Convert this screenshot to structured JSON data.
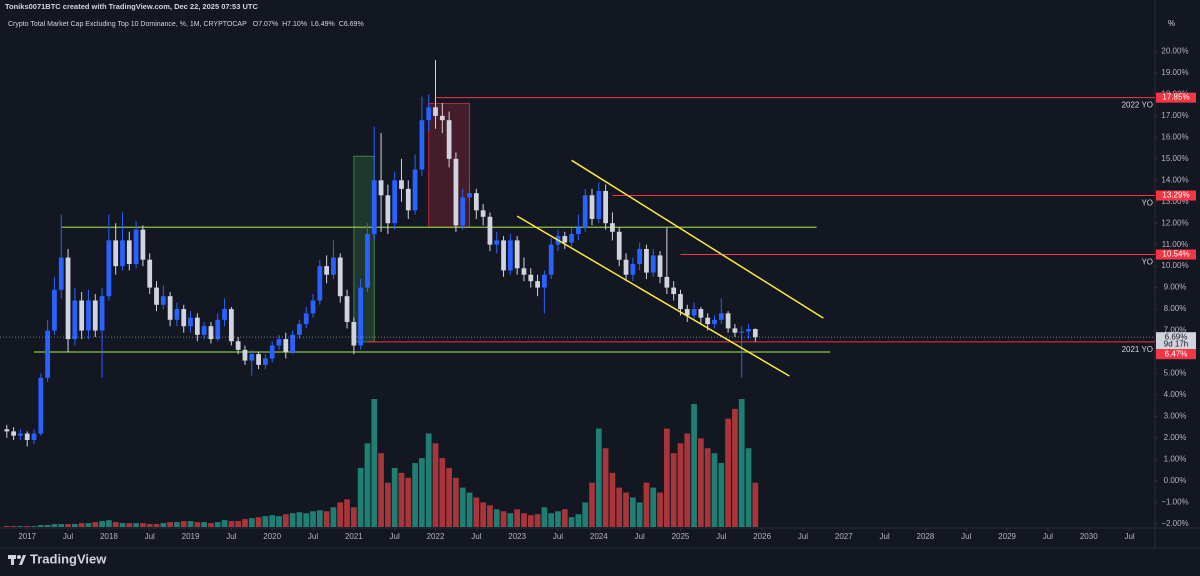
{
  "chart_data": {
    "type": "candlestick",
    "header": "Toniks0071BTC created with TradingView.com, Dec 22, 2025 07:53 UTC",
    "title": "Crypto Total Market Cap Excluding Top 10 Dominance, %, 1M, CRYPTOCAP",
    "ohlc_legend": [
      {
        "key": "O",
        "label": "7.07%"
      },
      {
        "key": "H",
        "label": "7.10%"
      },
      {
        "key": "L",
        "label": "6.49%"
      },
      {
        "key": "C",
        "label": "6.69%"
      }
    ],
    "y_unit": "%",
    "last_label": "6.69%",
    "countdown": "9d 17h",
    "brand": "TradingView",
    "colors": {
      "up": "#2962ff",
      "down": "#d1d4dc",
      "volume_up": "#1f7f73",
      "volume_down": "#a8353a"
    },
    "x": [
      "2016-10",
      "2016-11",
      "2016-12",
      "2017-01",
      "2017-02",
      "2017-03",
      "2017-04",
      "2017-05",
      "2017-06",
      "2017-07",
      "2017-08",
      "2017-09",
      "2017-10",
      "2017-11",
      "2017-12",
      "2018-01",
      "2018-02",
      "2018-03",
      "2018-04",
      "2018-05",
      "2018-06",
      "2018-07",
      "2018-08",
      "2018-09",
      "2018-10",
      "2018-11",
      "2018-12",
      "2019-01",
      "2019-02",
      "2019-03",
      "2019-04",
      "2019-05",
      "2019-06",
      "2019-07",
      "2019-08",
      "2019-09",
      "2019-10",
      "2019-11",
      "2019-12",
      "2020-01",
      "2020-02",
      "2020-03",
      "2020-04",
      "2020-05",
      "2020-06",
      "2020-07",
      "2020-08",
      "2020-09",
      "2020-10",
      "2020-11",
      "2020-12",
      "2021-01",
      "2021-02",
      "2021-03",
      "2021-04",
      "2021-05",
      "2021-06",
      "2021-07",
      "2021-08",
      "2021-09",
      "2021-10",
      "2021-11",
      "2021-12",
      "2022-01",
      "2022-02",
      "2022-03",
      "2022-04",
      "2022-05",
      "2022-06",
      "2022-07",
      "2022-08",
      "2022-09",
      "2022-10",
      "2022-11",
      "2022-12",
      "2023-01",
      "2023-02",
      "2023-03",
      "2023-04",
      "2023-05",
      "2023-06",
      "2023-07",
      "2023-08",
      "2023-09",
      "2023-10",
      "2023-11",
      "2023-12",
      "2024-01",
      "2024-02",
      "2024-03",
      "2024-04",
      "2024-05",
      "2024-06",
      "2024-07",
      "2024-08",
      "2024-09",
      "2024-10",
      "2024-11",
      "2024-12",
      "2025-01",
      "2025-02",
      "2025-03",
      "2025-04",
      "2025-05",
      "2025-06",
      "2025-07",
      "2025-08",
      "2025-09",
      "2025-10",
      "2025-11",
      "2025-12"
    ],
    "open": [
      2.4,
      2.3,
      2.1,
      2.2,
      1.9,
      2.2,
      4.8,
      7.0,
      8.9,
      10.4,
      6.6,
      8.4,
      7.0,
      8.4,
      7.0,
      8.6,
      11.2,
      10.0,
      11.2,
      10.1,
      11.7,
      10.3,
      9.0,
      8.2,
      8.6,
      7.5,
      8.0,
      7.2,
      7.6,
      6.8,
      7.2,
      6.6,
      7.5,
      8.0,
      6.5,
      6.1,
      5.6,
      5.9,
      5.4,
      5.7,
      6.3,
      6.6,
      6.0,
      6.8,
      7.3,
      7.8,
      8.4,
      10.0,
      9.6,
      10.4,
      8.6,
      7.4,
      6.3,
      9.0,
      11.5,
      14.0,
      13.3,
      12.0,
      14.0,
      13.6,
      12.6,
      14.5,
      16.8,
      17.4,
      17.0,
      16.8,
      15.0,
      11.9,
      13.2,
      13.4,
      12.6,
      12.3,
      11.0,
      11.2,
      9.8,
      11.2,
      9.9,
      9.6,
      9.3,
      9.0,
      9.6,
      11.0,
      11.4,
      11.1,
      11.5,
      11.8,
      13.3,
      12.2,
      13.5,
      12.0,
      11.6,
      10.3,
      9.6,
      10.1,
      10.8,
      9.7,
      10.5,
      9.5,
      9.0,
      8.7,
      8.0,
      7.7,
      8.0,
      7.6,
      7.3,
      7.5,
      7.8,
      7.1,
      6.9,
      6.95,
      7.07
    ],
    "high": [
      2.6,
      2.5,
      2.4,
      2.3,
      2.4,
      5.0,
      7.5,
      9.5,
      12.4,
      10.8,
      9.0,
      8.8,
      8.9,
      8.7,
      9.0,
      12.4,
      12.0,
      12.5,
      11.6,
      12.1,
      11.9,
      10.6,
      9.3,
      9.1,
      8.8,
      8.3,
      8.2,
      7.9,
      7.8,
      7.4,
      7.4,
      7.8,
      8.5,
      8.1,
      6.7,
      6.3,
      6.1,
      6.0,
      5.9,
      6.5,
      6.8,
      6.9,
      7.0,
      7.5,
      8.1,
      8.7,
      10.3,
      10.5,
      11.2,
      10.6,
      8.9,
      7.6,
      9.4,
      12.0,
      16.5,
      16.2,
      13.8,
      14.4,
      15.0,
      14.0,
      15.2,
      17.9,
      18.0,
      19.6,
      17.6,
      17.2,
      15.3,
      13.6,
      13.9,
      13.6,
      12.9,
      12.5,
      11.6,
      11.4,
      11.5,
      11.4,
      10.4,
      9.9,
      9.6,
      9.8,
      11.3,
      11.7,
      11.6,
      11.8,
      12.4,
      13.6,
      13.6,
      13.9,
      13.8,
      12.5,
      11.8,
      10.6,
      10.4,
      11.1,
      11.0,
      10.8,
      10.7,
      11.8,
      9.3,
      8.9,
      8.2,
      8.3,
      8.1,
      7.8,
      7.7,
      8.5,
      7.9,
      7.3,
      7.2,
      7.3,
      7.1
    ],
    "low": [
      2.0,
      1.9,
      1.9,
      1.6,
      1.7,
      2.1,
      4.6,
      6.8,
      8.5,
      6.0,
      6.3,
      6.6,
      6.6,
      6.7,
      4.8,
      8.4,
      9.6,
      9.8,
      9.8,
      9.9,
      10.0,
      8.7,
      7.9,
      8.0,
      7.2,
      7.2,
      6.9,
      6.9,
      6.5,
      6.6,
      6.4,
      6.5,
      7.2,
      6.3,
      5.9,
      5.4,
      4.9,
      5.2,
      5.2,
      5.5,
      6.1,
      5.7,
      5.9,
      6.6,
      7.1,
      7.6,
      8.2,
      9.2,
      9.4,
      8.3,
      7.1,
      5.9,
      6.1,
      8.8,
      11.2,
      11.6,
      11.5,
      11.7,
      13.0,
      12.2,
      12.4,
      14.2,
      16.3,
      16.4,
      16.2,
      14.6,
      11.6,
      11.7,
      12.9,
      12.2,
      11.9,
      10.7,
      10.6,
      9.5,
      9.6,
      9.6,
      9.3,
      9.0,
      8.6,
      7.8,
      9.4,
      10.7,
      10.8,
      10.9,
      11.2,
      11.6,
      11.9,
      12.0,
      11.7,
      11.2,
      10.0,
      9.3,
      9.3,
      9.8,
      9.4,
      9.5,
      9.2,
      8.7,
      8.4,
      7.7,
      7.4,
      7.5,
      7.3,
      7.0,
      7.1,
      7.3,
      6.9,
      6.7,
      4.8,
      6.6,
      6.49
    ],
    "close": [
      2.3,
      2.1,
      2.2,
      1.9,
      2.2,
      4.8,
      7.0,
      8.9,
      10.4,
      6.6,
      8.4,
      7.0,
      8.4,
      7.0,
      8.6,
      11.2,
      10.0,
      11.2,
      10.1,
      11.7,
      10.3,
      9.0,
      8.2,
      8.6,
      7.5,
      8.0,
      7.2,
      7.6,
      6.8,
      7.2,
      6.6,
      7.5,
      8.0,
      6.5,
      6.1,
      5.6,
      5.9,
      5.4,
      5.7,
      6.3,
      6.6,
      6.0,
      6.8,
      7.3,
      7.8,
      8.4,
      10.0,
      9.6,
      10.4,
      8.6,
      7.4,
      6.3,
      9.0,
      11.5,
      14.0,
      13.3,
      12.0,
      14.0,
      13.6,
      12.6,
      14.5,
      16.8,
      17.4,
      17.0,
      16.8,
      15.0,
      11.9,
      13.2,
      13.4,
      12.6,
      12.3,
      11.0,
      11.2,
      9.8,
      11.2,
      9.9,
      9.6,
      9.3,
      9.0,
      9.6,
      11.0,
      11.4,
      11.1,
      11.5,
      11.8,
      13.3,
      12.2,
      13.5,
      12.0,
      11.6,
      10.3,
      9.6,
      10.1,
      10.8,
      9.7,
      10.5,
      9.5,
      9.0,
      8.7,
      8.0,
      7.7,
      8.0,
      7.6,
      7.3,
      7.5,
      7.8,
      7.1,
      6.9,
      6.95,
      7.07,
      6.69
    ],
    "volume": [
      1,
      1,
      1,
      1,
      1,
      2,
      2,
      3,
      3,
      3,
      3,
      4,
      4,
      5,
      6,
      7,
      5,
      4,
      4,
      4,
      4,
      3,
      3,
      4,
      5,
      5,
      6,
      6,
      5,
      5,
      4,
      5,
      7,
      6,
      6,
      8,
      9,
      10,
      11,
      12,
      11,
      13,
      14,
      15,
      14,
      16,
      17,
      16,
      20,
      25,
      28,
      20,
      60,
      85,
      130,
      75,
      45,
      60,
      55,
      50,
      65,
      70,
      95,
      85,
      70,
      60,
      50,
      40,
      35,
      30,
      25,
      22,
      18,
      16,
      14,
      18,
      14,
      12,
      13,
      20,
      14,
      16,
      18,
      10,
      13,
      25,
      45,
      100,
      80,
      55,
      40,
      35,
      30,
      25,
      45,
      40,
      35,
      100,
      75,
      85,
      95,
      125,
      90,
      80,
      75,
      65,
      110,
      120,
      130,
      80,
      45
    ],
    "xlim": [
      "2016-09",
      "2030-10"
    ],
    "xticks": [
      {
        "value": "2017-01",
        "label": "2017"
      },
      {
        "value": "2017-07",
        "label": "Jul"
      },
      {
        "value": "2018-01",
        "label": "2018"
      },
      {
        "value": "2018-07",
        "label": "Jul"
      },
      {
        "value": "2019-01",
        "label": "2019"
      },
      {
        "value": "2019-07",
        "label": "Jul"
      },
      {
        "value": "2020-01",
        "label": "2020"
      },
      {
        "value": "2020-07",
        "label": "Jul"
      },
      {
        "value": "2021-01",
        "label": "2021"
      },
      {
        "value": "2021-07",
        "label": "Jul"
      },
      {
        "value": "2022-01",
        "label": "2022"
      },
      {
        "value": "2022-07",
        "label": "Jul"
      },
      {
        "value": "2023-01",
        "label": "2023"
      },
      {
        "value": "2023-07",
        "label": "Jul"
      },
      {
        "value": "2024-01",
        "label": "2024"
      },
      {
        "value": "2024-07",
        "label": "Jul"
      },
      {
        "value": "2025-01",
        "label": "2025"
      },
      {
        "value": "2025-07",
        "label": "Jul"
      },
      {
        "value": "2026-01",
        "label": "2026"
      },
      {
        "value": "2026-07",
        "label": "Jul"
      },
      {
        "value": "2027-01",
        "label": "2027"
      },
      {
        "value": "2027-07",
        "label": "Jul"
      },
      {
        "value": "2028-01",
        "label": "2028"
      },
      {
        "value": "2028-07",
        "label": "Jul"
      },
      {
        "value": "2029-01",
        "label": "2029"
      },
      {
        "value": "2029-07",
        "label": "Jul"
      },
      {
        "value": "2030-01",
        "label": "2030"
      },
      {
        "value": "2030-07",
        "label": "Jul"
      }
    ],
    "ylim": [
      -2.2,
      21.7
    ],
    "yticks": [
      {
        "value": 20,
        "label": "20.00%"
      },
      {
        "value": 19,
        "label": "19.00%"
      },
      {
        "value": 18,
        "label": "18.00%"
      },
      {
        "value": 17,
        "label": "17.00%"
      },
      {
        "value": 16,
        "label": "16.00%"
      },
      {
        "value": 15,
        "label": "15.00%"
      },
      {
        "value": 14,
        "label": "14.00%"
      },
      {
        "value": 13,
        "label": "13.00%"
      },
      {
        "value": 12,
        "label": "12.00%"
      },
      {
        "value": 11,
        "label": "11.00%"
      },
      {
        "value": 10,
        "label": "10.00%"
      },
      {
        "value": 9,
        "label": "9.00%"
      },
      {
        "value": 8,
        "label": "8.00%"
      },
      {
        "value": 7,
        "label": "7.00%"
      },
      {
        "value": 6,
        "label": "6.00%"
      },
      {
        "value": 5,
        "label": "5.00%"
      },
      {
        "value": 4,
        "label": "4.00%"
      },
      {
        "value": 3,
        "label": "3.00%"
      },
      {
        "value": 2,
        "label": "2.00%"
      },
      {
        "value": 1,
        "label": "1.00%"
      },
      {
        "value": 0,
        "label": "0.00%"
      },
      {
        "value": -1,
        "label": "−1.00%"
      },
      {
        "value": -2,
        "label": "−2.00%"
      }
    ],
    "grid": false,
    "levels": [
      {
        "value": 17.85,
        "label": "17.85%",
        "from": "2022-01",
        "note": "2022 YO",
        "color": "#f23645"
      },
      {
        "value": 13.29,
        "label": "13.29%",
        "from": "2024-03",
        "note": "YO",
        "color": "#f23645"
      },
      {
        "value": 10.54,
        "label": "10.54%",
        "from": "2025-01",
        "note": "YO",
        "color": "#f23645"
      },
      {
        "value": 6.47,
        "label": "6.47%",
        "from": "2021-03",
        "note": "2021 YO",
        "color": "#f23645"
      }
    ],
    "support_lines": [
      {
        "value": 11.81,
        "from": "2017-06",
        "to": "2026-09",
        "color": "#8bc34a"
      },
      {
        "value": 6.0,
        "from": "2017-02",
        "to": "2026-11",
        "color": "#8bc34a"
      }
    ],
    "trendlines": [
      {
        "x": [
          "2023-09",
          "2026-10"
        ],
        "values": [
          14.93,
          7.58
        ],
        "color": "#ffeb3b"
      },
      {
        "x": [
          "2023-01",
          "2026-05"
        ],
        "values": [
          12.33,
          4.88
        ],
        "color": "#ffeb3b"
      }
    ],
    "boxes": [
      {
        "x": [
          "2021-01",
          "2021-04"
        ],
        "values": [
          15.12,
          6.47
        ],
        "color": "#4caf50"
      },
      {
        "x": [
          "2021-12",
          "2022-06"
        ],
        "values": [
          17.58,
          11.81
        ],
        "color": "#f23645"
      }
    ]
  }
}
